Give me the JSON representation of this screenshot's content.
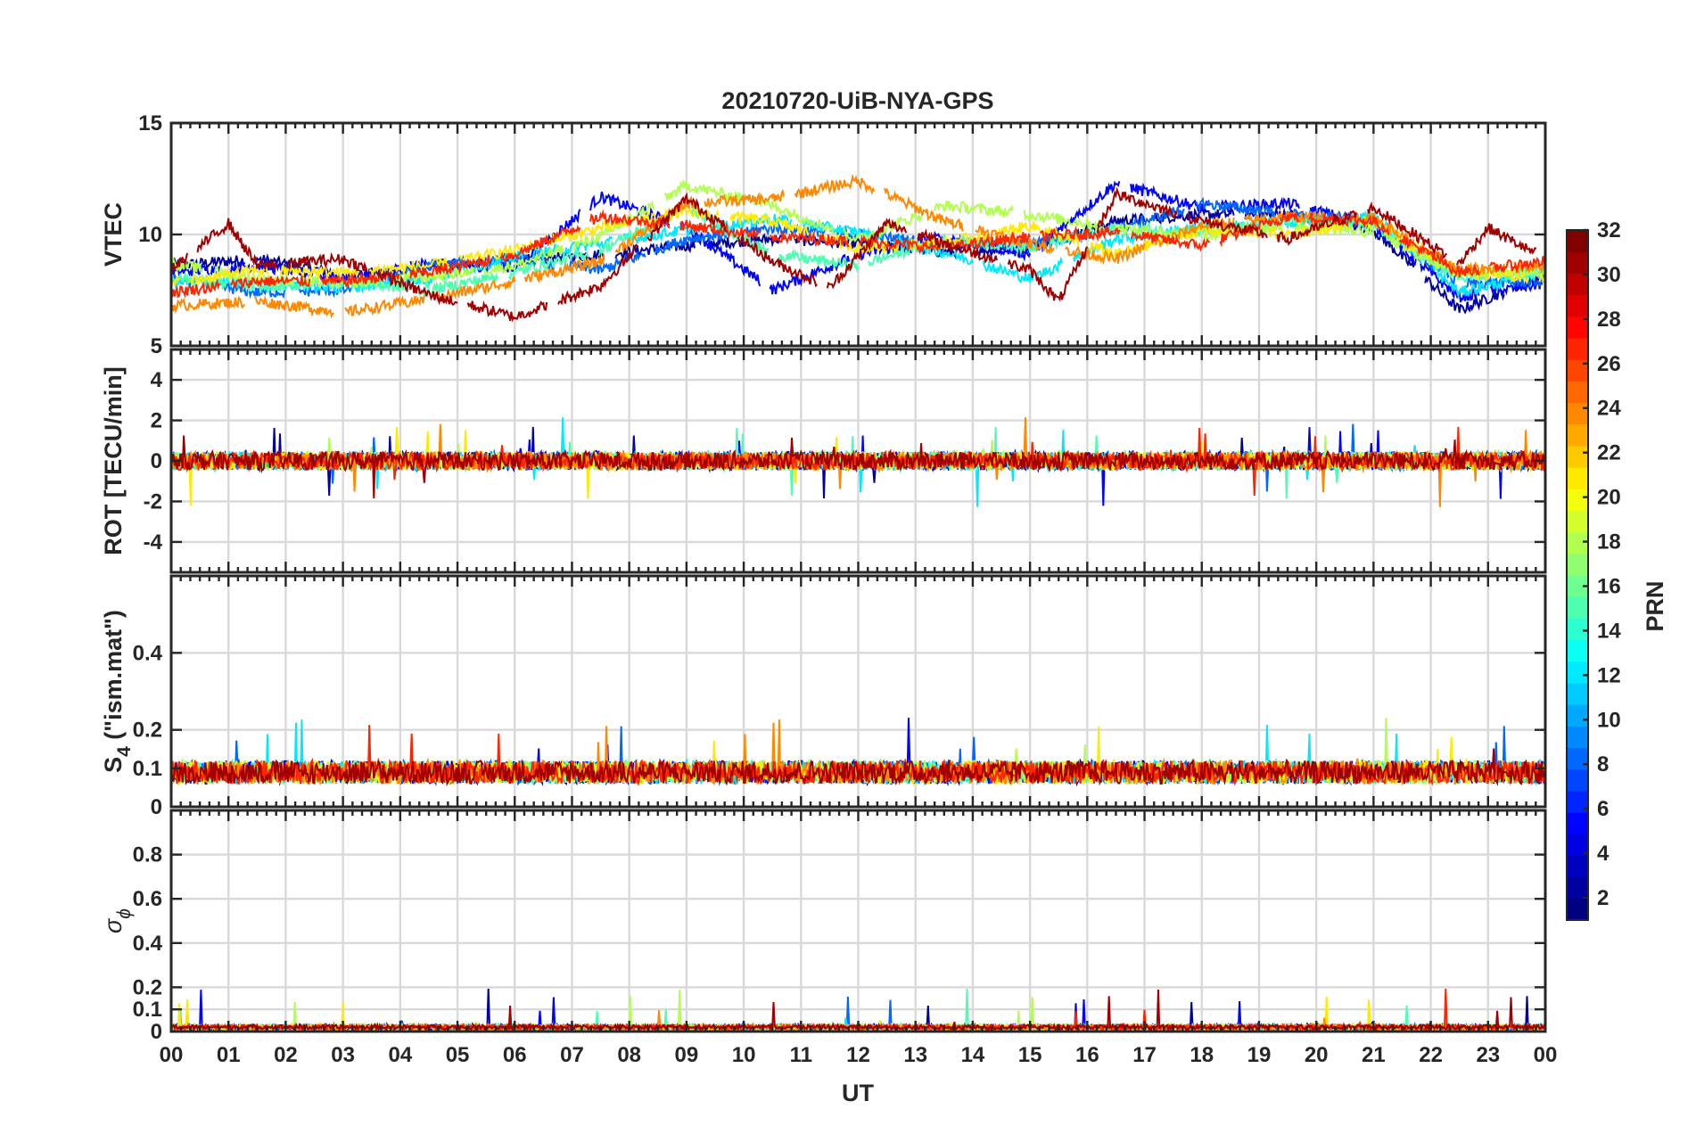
{
  "chart_data": {
    "type": "line",
    "title": "20210720-UiB-NYA-GPS",
    "xlabel": "UT",
    "x_tick_labels": [
      "00",
      "01",
      "02",
      "03",
      "04",
      "05",
      "06",
      "07",
      "08",
      "09",
      "10",
      "11",
      "12",
      "13",
      "14",
      "15",
      "16",
      "17",
      "18",
      "19",
      "20",
      "21",
      "22",
      "23",
      "00"
    ],
    "xlim": [
      0,
      24
    ],
    "colorbar": {
      "label": "PRN",
      "range": [
        1,
        32
      ],
      "ticks": [
        "2",
        "4",
        "6",
        "8",
        "10",
        "12",
        "14",
        "16",
        "18",
        "20",
        "22",
        "24",
        "26",
        "28",
        "30",
        "32"
      ],
      "colormap": "jet"
    },
    "panels": [
      {
        "id": "vtec",
        "ylabel": "VTEC",
        "ylim": [
          5,
          15
        ],
        "yticks": [
          5,
          10,
          15
        ],
        "ytick_labels": [
          "5",
          "10",
          "15"
        ],
        "description_series": "VTEC per PRN, values mostly between 6 and 13 TECU",
        "summary": {
          "typical_min": 6,
          "typical_max": 13
        }
      },
      {
        "id": "rot",
        "ylabel": "ROT [TECU/min]",
        "ylim": [
          -5.5,
          5.5
        ],
        "yticks": [
          -4,
          -2,
          0,
          2,
          4
        ],
        "ytick_labels": [
          "-4",
          "-2",
          "0",
          "2",
          "4"
        ],
        "summary": {
          "typical_min": -1,
          "typical_max": 1
        }
      },
      {
        "id": "s4",
        "ylabel_main": "S",
        "ylabel_sub": "4",
        "ylabel_tail": " (\"ism.mat\")",
        "ylim": [
          0,
          0.6
        ],
        "yticks": [
          0,
          0.1,
          0.2,
          0.4
        ],
        "ytick_labels": [
          "0",
          "0.1",
          "0.2",
          "0.4"
        ],
        "summary": {
          "typical_min": 0.05,
          "typical_max": 0.15
        }
      },
      {
        "id": "sigma",
        "ylabel_main": "σ",
        "ylabel_sub": "ϕ",
        "ylim": [
          0,
          1
        ],
        "yticks": [
          0,
          0.1,
          0.2,
          0.4,
          0.6,
          0.8
        ],
        "ytick_labels": [
          "0",
          "0.1",
          "0.2",
          "0.4",
          "0.6",
          "0.8"
        ],
        "summary": {
          "typical_min": 0.0,
          "typical_max": 0.05
        }
      }
    ],
    "series": [
      {
        "name": "PRN 2",
        "prn": 2,
        "vtec": [
          [
            0,
            8.6
          ],
          [
            1.5,
            8.9
          ],
          [
            3,
            8.2
          ],
          [
            4.5,
            8.4
          ],
          [
            6,
            8.9
          ],
          [
            7.5,
            9.1
          ],
          [
            9,
            9.5
          ],
          [
            10.5,
            9.8
          ],
          [
            12,
            9.6
          ],
          [
            13.5,
            9.2
          ],
          [
            15,
            9.4
          ],
          [
            16.5,
            10.6
          ],
          [
            18,
            10.9
          ],
          [
            19.5,
            10.9
          ],
          [
            21,
            10.2
          ],
          [
            22.5,
            6.6
          ],
          [
            24,
            8.2
          ]
        ]
      },
      {
        "name": "PRN 5",
        "prn": 5,
        "vtec": [
          [
            0,
            8.3
          ],
          [
            1.5,
            8.6
          ],
          [
            3,
            8.0
          ],
          [
            4.5,
            8.7
          ],
          [
            6,
            8.5
          ],
          [
            7.5,
            11.7
          ],
          [
            9,
            10.3
          ],
          [
            10.5,
            7.5
          ],
          [
            12,
            9.1
          ],
          [
            13.5,
            9.9
          ],
          [
            15,
            9.1
          ],
          [
            16.5,
            12.3
          ],
          [
            18,
            11.2
          ],
          [
            19.5,
            11.4
          ],
          [
            21,
            10.4
          ],
          [
            22.5,
            7.2
          ],
          [
            24,
            7.8
          ]
        ]
      },
      {
        "name": "PRN 8",
        "prn": 8,
        "vtec": [
          [
            0,
            8.0
          ],
          [
            1.5,
            7.4
          ],
          [
            3,
            7.5
          ],
          [
            4.5,
            8.6
          ],
          [
            6,
            8.9
          ],
          [
            7.5,
            8.4
          ],
          [
            9,
            9.8
          ],
          [
            10.5,
            10.3
          ],
          [
            12,
            10.0
          ],
          [
            13.5,
            9.6
          ],
          [
            15,
            9.6
          ],
          [
            16.5,
            10.2
          ],
          [
            18,
            11.4
          ],
          [
            19.5,
            10.9
          ],
          [
            21,
            10.6
          ],
          [
            22.5,
            7.8
          ],
          [
            24,
            7.9
          ]
        ]
      },
      {
        "name": "PRN 12",
        "prn": 12,
        "vtec": [
          [
            0,
            7.9
          ],
          [
            1.5,
            7.8
          ],
          [
            3,
            7.6
          ],
          [
            4.5,
            8.0
          ],
          [
            6,
            9.0
          ],
          [
            7.5,
            9.6
          ],
          [
            9,
            10.2
          ],
          [
            10.5,
            10.7
          ],
          [
            12,
            10.1
          ],
          [
            13.5,
            9.2
          ],
          [
            15,
            8.0
          ],
          [
            16.5,
            9.8
          ],
          [
            18,
            10.3
          ],
          [
            19.5,
            10.5
          ],
          [
            21,
            10.8
          ],
          [
            22.5,
            7.4
          ],
          [
            24,
            8.3
          ]
        ]
      },
      {
        "name": "PRN 15",
        "prn": 15,
        "vtec": [
          [
            0,
            8.1
          ],
          [
            1.5,
            7.6
          ],
          [
            3,
            7.9
          ],
          [
            4.5,
            7.5
          ],
          [
            6,
            8.3
          ],
          [
            7.5,
            9.3
          ],
          [
            9,
            11.2
          ],
          [
            10.5,
            9.1
          ],
          [
            12,
            8.6
          ],
          [
            13.5,
            9.8
          ],
          [
            15,
            9.4
          ],
          [
            16.5,
            10.3
          ],
          [
            18,
            10.1
          ],
          [
            19.5,
            10.6
          ],
          [
            21,
            10.4
          ],
          [
            22.5,
            8.1
          ],
          [
            24,
            8.3
          ]
        ]
      },
      {
        "name": "PRN 18",
        "prn": 18,
        "vtec": [
          [
            0,
            8.7
          ],
          [
            1.5,
            8.0
          ],
          [
            3,
            7.8
          ],
          [
            4.5,
            8.1
          ],
          [
            6,
            8.6
          ],
          [
            7.5,
            9.9
          ],
          [
            9,
            12.2
          ],
          [
            10.5,
            11.3
          ],
          [
            12,
            9.8
          ],
          [
            13.5,
            11.3
          ],
          [
            15,
            10.9
          ],
          [
            16.5,
            10.3
          ],
          [
            18,
            9.9
          ],
          [
            19.5,
            10.4
          ],
          [
            21,
            10.1
          ],
          [
            22.5,
            8.2
          ],
          [
            24,
            8.4
          ]
        ]
      },
      {
        "name": "PRN 21",
        "prn": 21,
        "vtec": [
          [
            0,
            7.8
          ],
          [
            1.5,
            8.4
          ],
          [
            3,
            8.3
          ],
          [
            4.5,
            8.6
          ],
          [
            6,
            9.3
          ],
          [
            7.5,
            10.3
          ],
          [
            9,
            11.0
          ],
          [
            10.5,
            10.6
          ],
          [
            12,
            9.4
          ],
          [
            13.5,
            9.6
          ],
          [
            15,
            10.4
          ],
          [
            16.5,
            9.1
          ],
          [
            18,
            10.2
          ],
          [
            19.5,
            10.0
          ],
          [
            21,
            10.6
          ],
          [
            22.5,
            8.3
          ],
          [
            24,
            8.0
          ]
        ]
      },
      {
        "name": "PRN 24",
        "prn": 24,
        "vtec": [
          [
            0,
            6.8
          ],
          [
            1.5,
            7.0
          ],
          [
            3,
            6.5
          ],
          [
            4.5,
            7.1
          ],
          [
            6,
            7.9
          ],
          [
            7.5,
            8.8
          ],
          [
            9,
            11.4
          ],
          [
            10.5,
            11.6
          ],
          [
            12,
            12.4
          ],
          [
            13.5,
            10.6
          ],
          [
            15,
            9.6
          ],
          [
            16.5,
            8.9
          ],
          [
            18,
            10.4
          ],
          [
            19.5,
            10.8
          ],
          [
            21,
            10.7
          ],
          [
            22.5,
            8.4
          ],
          [
            24,
            8.6
          ]
        ]
      },
      {
        "name": "PRN 27",
        "prn": 27,
        "vtec": [
          [
            0,
            7.4
          ],
          [
            1.5,
            7.9
          ],
          [
            3,
            7.9
          ],
          [
            4.5,
            8.3
          ],
          [
            6,
            9.1
          ],
          [
            7.5,
            10.8
          ],
          [
            9,
            10.4
          ],
          [
            10.5,
            9.9
          ],
          [
            12,
            9.7
          ],
          [
            13.5,
            9.4
          ],
          [
            15,
            9.9
          ],
          [
            16.5,
            10.1
          ],
          [
            18,
            9.5
          ],
          [
            19.5,
            10.8
          ],
          [
            21,
            10.6
          ],
          [
            22.5,
            8.3
          ],
          [
            24,
            8.8
          ]
        ]
      },
      {
        "name": "PRN 31",
        "prn": 31,
        "vtec": [
          [
            0,
            8.4
          ],
          [
            1.0,
            10.5
          ],
          [
            1.5,
            8.6
          ],
          [
            3,
            8.9
          ],
          [
            4.5,
            7.3
          ],
          [
            6,
            6.3
          ],
          [
            7.5,
            7.7
          ],
          [
            9,
            11.6
          ],
          [
            10.5,
            8.8
          ],
          [
            11.5,
            7.6
          ],
          [
            12.5,
            10.5
          ],
          [
            13.5,
            9.6
          ],
          [
            15,
            8.4
          ],
          [
            15.5,
            7.0
          ],
          [
            16.5,
            11.8
          ],
          [
            18,
            10.6
          ],
          [
            19.5,
            9.8
          ],
          [
            21,
            11.2
          ],
          [
            22.5,
            8.7
          ],
          [
            23.0,
            10.3
          ],
          [
            24,
            8.9
          ]
        ]
      }
    ]
  }
}
